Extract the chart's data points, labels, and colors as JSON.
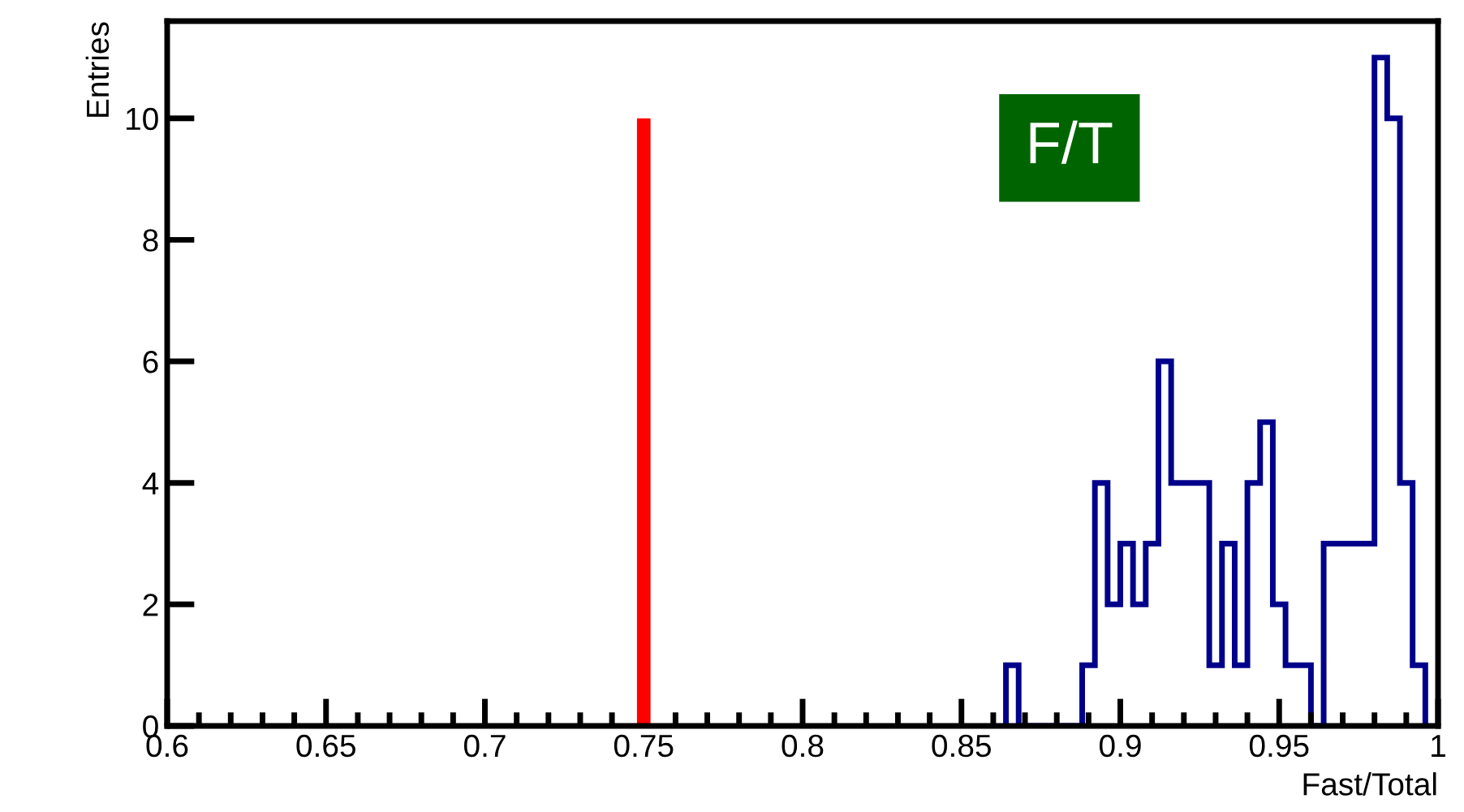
{
  "chart_data": {
    "type": "histogram",
    "xlabel": "Fast/Total",
    "ylabel": "Entries",
    "annotations": [
      "F/T"
    ],
    "color": "#00008b",
    "bins": [
      0.864,
      0.868,
      0.872,
      0.876,
      0.88,
      0.884,
      0.888,
      0.892,
      0.896,
      0.9,
      0.904,
      0.908,
      0.912,
      0.916,
      0.92,
      0.924,
      0.928,
      0.932,
      0.936,
      0.94,
      0.944,
      0.948,
      0.952,
      0.956,
      0.96,
      0.964,
      0.968,
      0.972,
      0.976,
      0.98,
      0.984,
      0.988,
      0.992,
      0.996
    ],
    "values": [
      1,
      0,
      0,
      0,
      0,
      0,
      1,
      4,
      2,
      3,
      2,
      3,
      6,
      4,
      4,
      4,
      1,
      3,
      1,
      4,
      5,
      2,
      1,
      1,
      0,
      3,
      3,
      3,
      3,
      11,
      10,
      4,
      1
    ],
    "series": [
      {
        "type": "line",
        "color": "#ff0000",
        "x": [
          0.75,
          0.75
        ],
        "values": [
          0,
          10
        ]
      }
    ],
    "xlim": [
      0.6,
      1.0
    ],
    "ylim": [
      0,
      11.6
    ],
    "xticks": [
      0.6,
      {
        "value": 0.61,
        "label": null
      },
      {
        "value": 0.62,
        "label": null
      },
      {
        "value": 0.63,
        "label": null
      },
      {
        "value": 0.64,
        "label": null
      },
      0.65,
      {
        "value": 0.66,
        "label": null
      },
      {
        "value": 0.67,
        "label": null
      },
      {
        "value": 0.68,
        "label": null
      },
      {
        "value": 0.69,
        "label": null
      },
      0.7,
      {
        "value": 0.71,
        "label": null
      },
      {
        "value": 0.72,
        "label": null
      },
      {
        "value": 0.73,
        "label": null
      },
      {
        "value": 0.74,
        "label": null
      },
      0.75,
      {
        "value": 0.76,
        "label": null
      },
      {
        "value": 0.77,
        "label": null
      },
      {
        "value": 0.78,
        "label": null
      },
      {
        "value": 0.79,
        "label": null
      },
      0.8,
      {
        "value": 0.81,
        "label": null
      },
      {
        "value": 0.82,
        "label": null
      },
      {
        "value": 0.83,
        "label": null
      },
      {
        "value": 0.84,
        "label": null
      },
      0.85,
      {
        "value": 0.86,
        "label": null
      },
      {
        "value": 0.87,
        "label": null
      },
      {
        "value": 0.88,
        "label": null
      },
      {
        "value": 0.89,
        "label": null
      },
      0.9,
      {
        "value": 0.91,
        "label": null
      },
      {
        "value": 0.92,
        "label": null
      },
      {
        "value": 0.93,
        "label": null
      },
      {
        "value": 0.94,
        "label": null
      },
      0.95,
      {
        "value": 0.96,
        "label": null
      },
      {
        "value": 0.97,
        "label": null
      },
      {
        "value": 0.98,
        "label": null
      },
      {
        "value": 0.99,
        "label": null
      },
      {
        "value": 1.0,
        "label": "1"
      }
    ],
    "yticks": [
      0,
      2,
      4,
      6,
      8,
      10
    ],
    "grid": false,
    "legend": false
  }
}
